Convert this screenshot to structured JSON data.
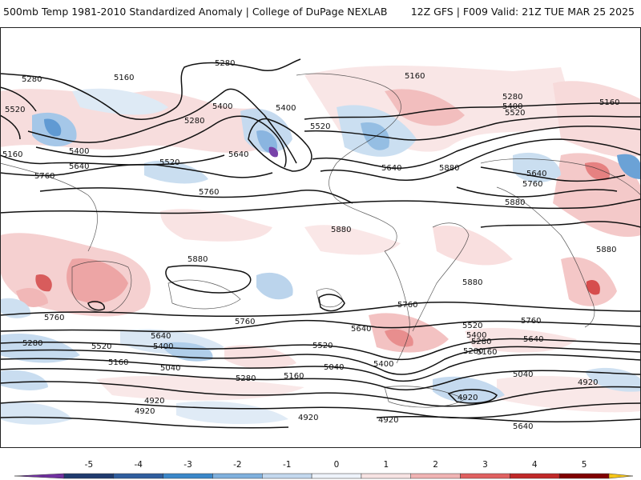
{
  "header": {
    "title": "500mb Temp 1981-2010 Standardized Anomaly | College of DuPage NEXLAB",
    "run_info": "12Z GFS | F009 Valid: 21Z TUE MAR 25 2025"
  },
  "contour_labels": [
    {
      "text": "5280"
    },
    {
      "text": "5160"
    },
    {
      "text": "5520"
    },
    {
      "text": "5280"
    },
    {
      "text": "5400"
    },
    {
      "text": "5280"
    },
    {
      "text": "5400"
    },
    {
      "text": "5160"
    },
    {
      "text": "5520"
    },
    {
      "text": "5640"
    },
    {
      "text": "5400"
    },
    {
      "text": "5520"
    },
    {
      "text": "5640"
    },
    {
      "text": "5760"
    },
    {
      "text": "5760"
    },
    {
      "text": "5640"
    },
    {
      "text": "5880"
    },
    {
      "text": "5160"
    },
    {
      "text": "5280"
    },
    {
      "text": "5400"
    },
    {
      "text": "5520"
    },
    {
      "text": "5160"
    },
    {
      "text": "5640"
    },
    {
      "text": "5760"
    },
    {
      "text": "5880"
    },
    {
      "text": "5880"
    },
    {
      "text": "5880"
    },
    {
      "text": "5880"
    },
    {
      "text": "5880"
    },
    {
      "text": "5760"
    },
    {
      "text": "5760"
    },
    {
      "text": "5760"
    },
    {
      "text": "5760"
    },
    {
      "text": "5640"
    },
    {
      "text": "5640"
    },
    {
      "text": "5520"
    },
    {
      "text": "5400"
    },
    {
      "text": "5280"
    },
    {
      "text": "5520"
    },
    {
      "text": "5400"
    },
    {
      "text": "5640"
    },
    {
      "text": "5520"
    },
    {
      "text": "5280"
    },
    {
      "text": "5160"
    },
    {
      "text": "5160"
    },
    {
      "text": "5040"
    },
    {
      "text": "5280"
    },
    {
      "text": "5160"
    },
    {
      "text": "5040"
    },
    {
      "text": "5400"
    },
    {
      "text": "5040"
    },
    {
      "text": "4920"
    },
    {
      "text": "4920"
    },
    {
      "text": "4920"
    },
    {
      "text": "4920"
    },
    {
      "text": "4920"
    },
    {
      "text": "4920"
    },
    {
      "text": "5640"
    },
    {
      "text": "5280"
    }
  ],
  "colorbar": {
    "ticks": [
      "-5",
      "-4",
      "-3",
      "-2",
      "-1",
      "0",
      "1",
      "2",
      "3",
      "4",
      "5"
    ],
    "colors": {
      "left_tip": "#7030a0",
      "bins": [
        "#1f3a6e",
        "#2f5d9e",
        "#3b87c9",
        "#7fb0dd",
        "#c3d8ee",
        "#eef3fa",
        "#f7e3e3",
        "#f0b3b3",
        "#e06060",
        "#c02828",
        "#800000"
      ],
      "right_tip": "#f5c518"
    }
  }
}
